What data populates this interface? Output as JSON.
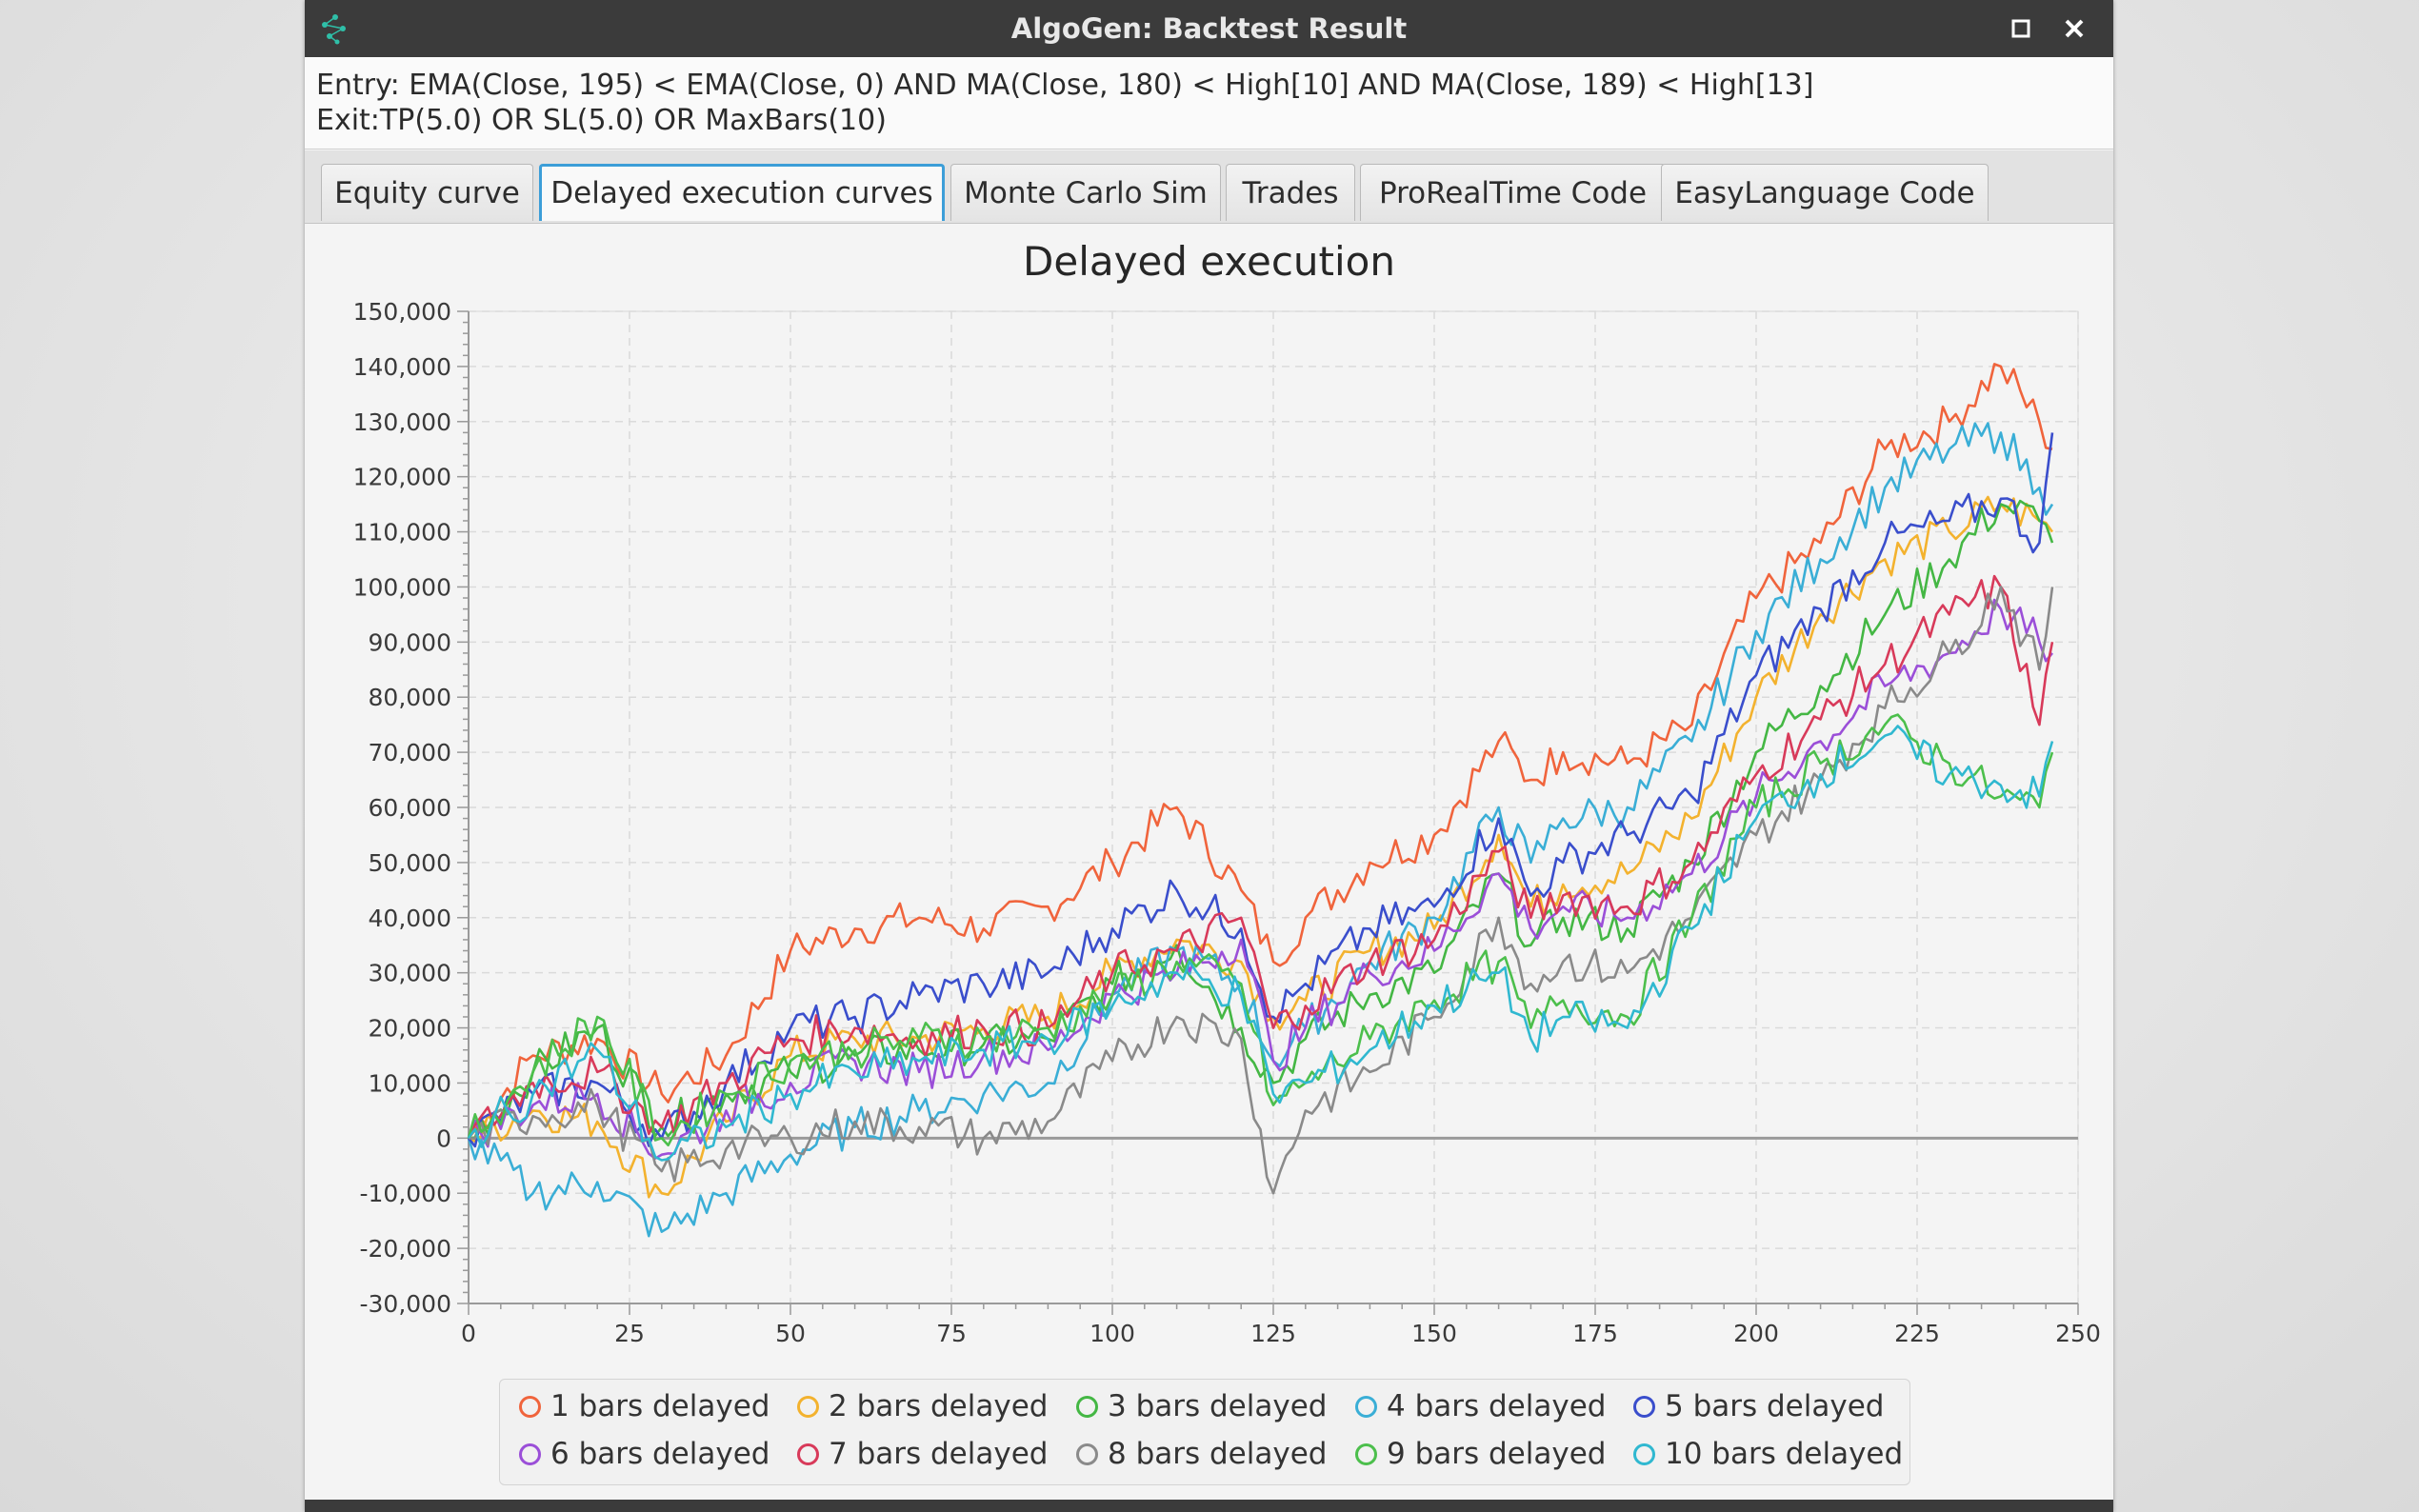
{
  "window": {
    "title": "AlgoGen: Backtest Result",
    "titlebar_color": "#3b3b3b",
    "maximize_icon": "maximize-icon",
    "close_icon": "close-icon",
    "app_icon": "network-nodes-icon"
  },
  "rules": {
    "entry": "Entry: EMA(Close, 195) < EMA(Close, 0) AND MA(Close, 180) < High[10] AND MA(Close, 189) < High[13]",
    "exit": "Exit:TP(5.0) OR SL(5.0) OR MaxBars(10)"
  },
  "tabs": [
    {
      "label": "Equity curve",
      "active": false
    },
    {
      "label": "Delayed execution curves",
      "active": true
    },
    {
      "label": "Monte Carlo Sim",
      "active": false
    },
    {
      "label": "Trades",
      "active": false
    },
    {
      "label": "ProRealTime Code",
      "active": false
    },
    {
      "label": "EasyLanguage Code",
      "active": false
    }
  ],
  "chart_data": {
    "type": "line",
    "title": "Delayed execution",
    "xlabel": "",
    "ylabel": "",
    "xlim": [
      0,
      250
    ],
    "ylim": [
      -30000,
      150000
    ],
    "x_ticks": [
      0,
      25,
      50,
      75,
      100,
      125,
      150,
      175,
      200,
      225,
      250
    ],
    "x_tick_labels": [
      "0",
      "25",
      "50",
      "75",
      "100",
      "125",
      "150",
      "175",
      "200",
      "225",
      "250"
    ],
    "y_ticks": [
      150000,
      140000,
      130000,
      120000,
      110000,
      100000,
      90000,
      80000,
      70000,
      60000,
      50000,
      40000,
      30000,
      20000,
      10000,
      0,
      -10000,
      -20000,
      -30000
    ],
    "y_tick_labels": [
      "150,000",
      "140,000",
      "130,000",
      "120,000",
      "110,000",
      "100,000",
      "90,000",
      "80,000",
      "70,000",
      "60,000",
      "50,000",
      "40,000",
      "30,000",
      "20,000",
      "10,000",
      "0",
      "-10,000",
      "-20,000",
      "-30,000"
    ],
    "grid": true,
    "legend_position": "bottom",
    "zero_line": true,
    "x": [
      0,
      10,
      20,
      30,
      40,
      50,
      60,
      70,
      80,
      90,
      100,
      110,
      120,
      125,
      130,
      140,
      150,
      160,
      165,
      170,
      180,
      190,
      200,
      210,
      220,
      230,
      238,
      244,
      246
    ],
    "series": [
      {
        "name": "1 bars delayed",
        "color": "#f0643c",
        "values": [
          0,
          15000,
          18000,
          8000,
          15000,
          34000,
          38000,
          40000,
          38000,
          42000,
          50000,
          60000,
          45000,
          32000,
          40000,
          50000,
          55000,
          72000,
          65000,
          70000,
          68000,
          75000,
          98000,
          108000,
          125000,
          130000,
          140000,
          130000,
          125000
        ]
      },
      {
        "name": "2 bars delayed",
        "color": "#f3b22e",
        "values": [
          0,
          5000,
          3000,
          -10000,
          3000,
          15000,
          18000,
          18000,
          20000,
          22000,
          30000,
          36000,
          32000,
          22000,
          25000,
          34000,
          38000,
          55000,
          42000,
          46000,
          48000,
          58000,
          80000,
          95000,
          105000,
          110000,
          115000,
          112000,
          110000
        ]
      },
      {
        "name": "3 bars delayed",
        "color": "#44b744",
        "values": [
          0,
          12000,
          20000,
          2000,
          8000,
          12000,
          15000,
          16000,
          17000,
          18000,
          28000,
          35000,
          20000,
          10000,
          18000,
          26000,
          30000,
          48000,
          35000,
          40000,
          38000,
          50000,
          70000,
          82000,
          95000,
          105000,
          115000,
          112000,
          108000
        ]
      },
      {
        "name": "4 bars delayed",
        "color": "#3aaed6",
        "values": [
          0,
          -10000,
          -8000,
          -17000,
          -10000,
          -3000,
          2000,
          5000,
          8000,
          10000,
          26000,
          34000,
          28000,
          14000,
          20000,
          32000,
          40000,
          60000,
          50000,
          58000,
          60000,
          72000,
          92000,
          105000,
          118000,
          125000,
          128000,
          118000,
          115000
        ]
      },
      {
        "name": "5 bars delayed",
        "color": "#3a4ecc",
        "values": [
          0,
          8000,
          10000,
          0,
          10000,
          20000,
          22000,
          26000,
          28000,
          30000,
          38000,
          45000,
          38000,
          22000,
          28000,
          38000,
          42000,
          58000,
          44000,
          50000,
          55000,
          62000,
          84000,
          96000,
          108000,
          112000,
          116000,
          108000,
          128000
        ]
      },
      {
        "name": "6 bars delayed",
        "color": "#9b4fd8",
        "values": [
          0,
          6000,
          8000,
          -3000,
          5000,
          10000,
          14000,
          12000,
          15000,
          16000,
          26000,
          30000,
          36000,
          14000,
          20000,
          30000,
          34000,
          48000,
          38000,
          42000,
          40000,
          48000,
          62000,
          72000,
          82000,
          88000,
          96000,
          90000,
          88000
        ]
      },
      {
        "name": "7 bars delayed",
        "color": "#d83a5a",
        "values": [
          0,
          10000,
          12000,
          2000,
          10000,
          18000,
          20000,
          18000,
          20000,
          20000,
          30000,
          34000,
          40000,
          20000,
          24000,
          32000,
          36000,
          52000,
          40000,
          44000,
          42000,
          50000,
          66000,
          76000,
          86000,
          95000,
          100000,
          75000,
          90000
        ]
      },
      {
        "name": "8 bars delayed",
        "color": "#8a8a8a",
        "values": [
          0,
          4000,
          6000,
          -6000,
          -2000,
          0,
          3000,
          2000,
          0,
          3000,
          14000,
          22000,
          18000,
          -10000,
          5000,
          12000,
          22000,
          40000,
          28000,
          32000,
          30000,
          40000,
          55000,
          65000,
          78000,
          88000,
          100000,
          85000,
          100000
        ]
      },
      {
        "name": "9 bars delayed",
        "color": "#4cbf4c",
        "values": [
          0,
          12000,
          22000,
          0,
          8000,
          14000,
          16000,
          18000,
          18000,
          20000,
          26000,
          32000,
          28000,
          6000,
          10000,
          18000,
          25000,
          32000,
          20000,
          25000,
          22000,
          40000,
          60000,
          68000,
          75000,
          68000,
          62000,
          60000,
          70000
        ]
      },
      {
        "name": "10 bars delayed",
        "color": "#30b8d0",
        "values": [
          0,
          8000,
          16000,
          -4000,
          2000,
          8000,
          12000,
          14000,
          16000,
          18000,
          24000,
          30000,
          26000,
          8000,
          10000,
          16000,
          24000,
          30000,
          18000,
          22000,
          20000,
          38000,
          58000,
          66000,
          73000,
          66000,
          64000,
          62000,
          72000
        ]
      }
    ]
  }
}
